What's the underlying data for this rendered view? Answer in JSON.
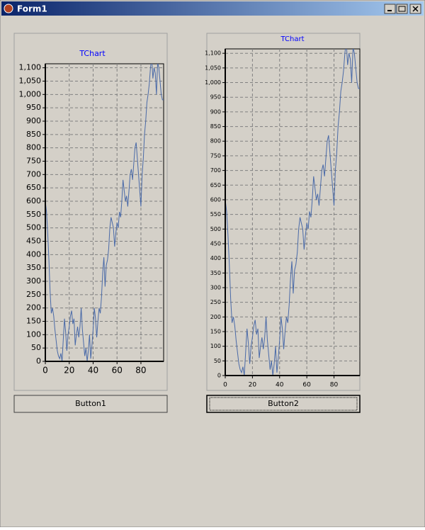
{
  "window": {
    "title": "Form1"
  },
  "chart_data": [
    {
      "type": "line",
      "title": "TChart",
      "x": [
        0,
        1,
        2,
        3,
        4,
        5,
        6,
        7,
        8,
        9,
        10,
        11,
        12,
        13,
        14,
        15,
        16,
        17,
        18,
        19,
        20,
        21,
        22,
        23,
        24,
        25,
        26,
        27,
        28,
        29,
        30,
        31,
        32,
        33,
        34,
        35,
        36,
        37,
        38,
        39,
        40,
        41,
        42,
        43,
        44,
        45,
        46,
        47,
        48,
        49,
        50,
        51,
        52,
        53,
        54,
        55,
        56,
        57,
        58,
        59,
        60,
        61,
        62,
        63,
        64,
        65,
        66,
        67,
        68,
        69,
        70,
        71,
        72,
        73,
        74,
        75,
        76,
        77,
        78,
        79,
        80,
        81,
        82,
        83,
        84,
        85,
        86,
        87,
        88,
        89,
        90,
        91,
        92,
        93,
        94,
        95,
        96,
        97,
        98,
        99
      ],
      "series": [
        {
          "color": "#4a6aa8",
          "values": [
            600,
            560,
            480,
            380,
            260,
            180,
            200,
            170,
            120,
            80,
            40,
            20,
            10,
            30,
            0,
            80,
            160,
            110,
            40,
            100,
            130,
            170,
            190,
            140,
            160,
            60,
            100,
            130,
            90,
            130,
            200,
            120,
            70,
            20,
            50,
            0,
            40,
            100,
            10,
            60,
            120,
            200,
            160,
            90,
            150,
            200,
            180,
            240,
            330,
            390,
            280,
            360,
            380,
            420,
            500,
            540,
            520,
            500,
            430,
            480,
            520,
            500,
            560,
            540,
            600,
            680,
            640,
            600,
            620,
            580,
            640,
            700,
            720,
            680,
            740,
            800,
            820,
            760,
            700,
            640,
            580,
            700,
            760,
            850,
            900,
            970,
            1000,
            1040,
            1100,
            1140,
            1060,
            1100,
            1080,
            1000,
            1120,
            1100,
            1050,
            1000,
            980,
            980
          ]
        }
      ],
      "xlim": [
        0,
        99
      ],
      "ylim": [
        0,
        1115
      ],
      "xticks": [
        0,
        20,
        40,
        60,
        80
      ],
      "yticks": [
        0,
        50,
        100,
        150,
        200,
        250,
        300,
        350,
        400,
        450,
        500,
        550,
        600,
        650,
        700,
        750,
        800,
        850,
        900,
        950,
        {
          "value": 1000,
          "label": "1,000"
        },
        {
          "value": 1050,
          "label": "1,050"
        },
        {
          "value": 1100,
          "label": "1,100"
        }
      ],
      "grid": true
    },
    {
      "type": "line",
      "title": "TChart",
      "x": [
        0,
        1,
        2,
        3,
        4,
        5,
        6,
        7,
        8,
        9,
        10,
        11,
        12,
        13,
        14,
        15,
        16,
        17,
        18,
        19,
        20,
        21,
        22,
        23,
        24,
        25,
        26,
        27,
        28,
        29,
        30,
        31,
        32,
        33,
        34,
        35,
        36,
        37,
        38,
        39,
        40,
        41,
        42,
        43,
        44,
        45,
        46,
        47,
        48,
        49,
        50,
        51,
        52,
        53,
        54,
        55,
        56,
        57,
        58,
        59,
        60,
        61,
        62,
        63,
        64,
        65,
        66,
        67,
        68,
        69,
        70,
        71,
        72,
        73,
        74,
        75,
        76,
        77,
        78,
        79,
        80,
        81,
        82,
        83,
        84,
        85,
        86,
        87,
        88,
        89,
        90,
        91,
        92,
        93,
        94,
        95,
        96,
        97,
        98,
        99
      ],
      "series": [
        {
          "color": "#4a6aa8",
          "values": [
            600,
            560,
            480,
            380,
            260,
            180,
            200,
            170,
            120,
            80,
            40,
            20,
            10,
            30,
            0,
            80,
            160,
            110,
            40,
            100,
            130,
            170,
            190,
            140,
            160,
            60,
            100,
            130,
            90,
            130,
            200,
            120,
            70,
            20,
            50,
            0,
            40,
            100,
            10,
            60,
            120,
            200,
            160,
            90,
            150,
            200,
            180,
            240,
            330,
            390,
            280,
            360,
            380,
            420,
            500,
            540,
            520,
            500,
            430,
            480,
            520,
            500,
            560,
            540,
            600,
            680,
            640,
            600,
            620,
            580,
            640,
            700,
            720,
            680,
            740,
            800,
            820,
            760,
            700,
            640,
            580,
            700,
            760,
            850,
            900,
            970,
            1000,
            1040,
            1100,
            1140,
            1060,
            1100,
            1080,
            1000,
            1120,
            1100,
            1050,
            1000,
            980,
            980
          ]
        }
      ],
      "xlim": [
        0,
        99
      ],
      "ylim": [
        0,
        1115
      ],
      "xticks": [
        0,
        20,
        40,
        60,
        80
      ],
      "yticks": [
        0,
        50,
        100,
        150,
        200,
        250,
        300,
        350,
        400,
        450,
        500,
        550,
        600,
        650,
        700,
        750,
        800,
        850,
        900,
        950,
        {
          "value": 1000,
          "label": "1,000"
        },
        {
          "value": 1050,
          "label": "1,050"
        },
        {
          "value": 1100,
          "label": "1,100"
        }
      ],
      "grid": true
    }
  ],
  "buttons": [
    "Button1",
    "Button2"
  ]
}
